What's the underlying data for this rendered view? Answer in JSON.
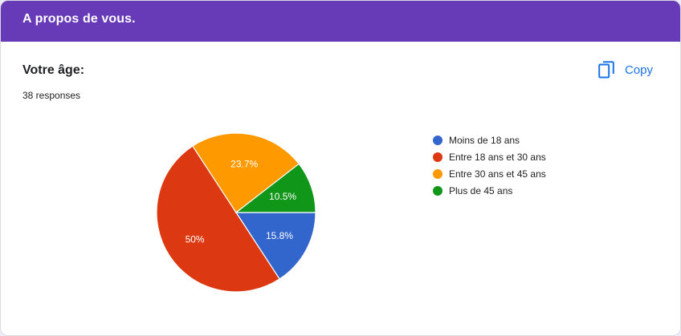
{
  "header": {
    "title": "A propos de vous."
  },
  "question": {
    "title": "Votre âge:",
    "responses": "38 responses"
  },
  "toolbar": {
    "copy_label": "Copy",
    "copy_icon": "copy-icon"
  },
  "chart_data": {
    "type": "pie",
    "title": "",
    "categories": [
      "Moins de 18 ans",
      "Entre 18 ans et 30 ans",
      "Entre 30 ans et 45 ans",
      "Plus de 45 ans"
    ],
    "values": [
      15.8,
      50,
      23.7,
      10.5
    ],
    "labels": [
      "15.8%",
      "50%",
      "23.7%",
      "10.5%"
    ],
    "colors": [
      "#3366cc",
      "#dc3912",
      "#ff9900",
      "#109618"
    ],
    "legend_position": "right"
  }
}
